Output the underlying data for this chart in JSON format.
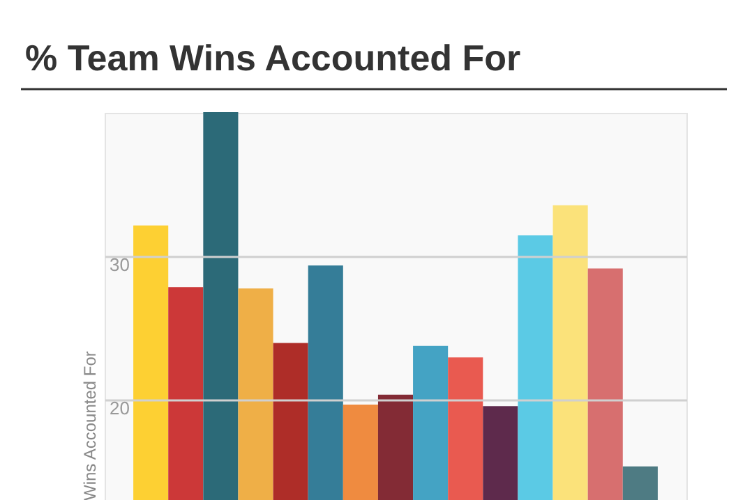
{
  "chart_data": {
    "type": "bar",
    "title": "% Team Wins Accounted For",
    "ylabel": "Wins Accounted For",
    "categories": [
      null,
      null,
      null,
      null,
      null,
      null,
      null,
      null,
      null,
      null,
      null,
      null,
      null,
      null,
      null
    ],
    "values": [
      32.1,
      27.8,
      40.0,
      27.7,
      23.9,
      29.3,
      19.6,
      20.3,
      23.7,
      22.9,
      19.5,
      31.4,
      33.5,
      29.1,
      15.3
    ],
    "colors": [
      "#fdd033",
      "#cc3838",
      "#2c6a78",
      "#efaf47",
      "#ae2d28",
      "#357d98",
      "#ef8b40",
      "#832b35",
      "#44a3c4",
      "#e95a50",
      "#5e2a4c",
      "#5bcae5",
      "#fbe27a",
      "#d76f6f",
      "#4e7b83"
    ],
    "ylim": [
      13,
      40
    ],
    "yticks": [
      20,
      30
    ],
    "grid": "y",
    "tick_labels": "y"
  }
}
